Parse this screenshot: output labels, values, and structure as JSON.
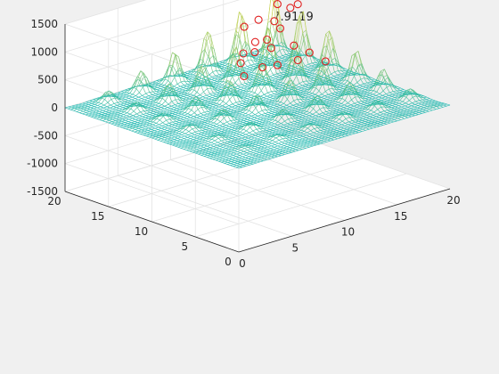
{
  "chart_data": {
    "type": "surface",
    "title": "寻找最优值: 907.9119",
    "xlabel": "",
    "ylabel": "",
    "zlabel": "",
    "xlim": [
      0,
      20
    ],
    "ylim": [
      0,
      20
    ],
    "zlim": [
      -1500,
      1500
    ],
    "xticks": [
      "0",
      "5",
      "10",
      "15",
      "20"
    ],
    "yticks": [
      "0",
      "5",
      "10",
      "15",
      "20"
    ],
    "zticks": [
      "-1500",
      "-1000",
      "-500",
      "0",
      "500",
      "1000",
      "1500"
    ],
    "grid": true,
    "surface_function": "x*sin(4*pi*x) + y*sin(20*pi*y) style multimodal peaks, growing with x and y",
    "surface_peak_z": 1250,
    "mesh_colors": [
      "#1fb8b0",
      "#e6d84a"
    ],
    "marker_color": "#e02020",
    "marker_shape": "circle",
    "markers": [
      {
        "x": 19.0,
        "y": 16.3,
        "z": 980
      },
      {
        "x": 18.7,
        "y": 16.8,
        "z": 905
      },
      {
        "x": 17.5,
        "y": 16.5,
        "z": 620
      },
      {
        "x": 16.9,
        "y": 17.3,
        "z": 410
      },
      {
        "x": 16.2,
        "y": 17.8,
        "z": 380
      },
      {
        "x": 15.5,
        "y": 17.0,
        "z": 280
      },
      {
        "x": 18.3,
        "y": 15.9,
        "z": 300
      },
      {
        "x": 14.9,
        "y": 17.6,
        "z": 260
      },
      {
        "x": 17.6,
        "y": 14.6,
        "z": 150
      },
      {
        "x": 19.2,
        "y": 15.2,
        "z": 160
      },
      {
        "x": 16.4,
        "y": 16.2,
        "z": 350
      },
      {
        "x": 14.0,
        "y": 16.8,
        "z": 180
      },
      {
        "x": 18.0,
        "y": 17.8,
        "z": 650
      },
      {
        "x": 15.0,
        "y": 15.5,
        "z": 120
      },
      {
        "x": 13.0,
        "y": 15.2,
        "z": 90
      },
      {
        "x": 19.4,
        "y": 13.6,
        "z": 80
      },
      {
        "x": 17.0,
        "y": 18.4,
        "z": 700
      },
      {
        "x": 15.9,
        "y": 18.7,
        "z": 620
      },
      {
        "x": 18.8,
        "y": 18.4,
        "z": 880
      },
      {
        "x": 16.0,
        "y": 15.0,
        "z": 130
      }
    ]
  }
}
